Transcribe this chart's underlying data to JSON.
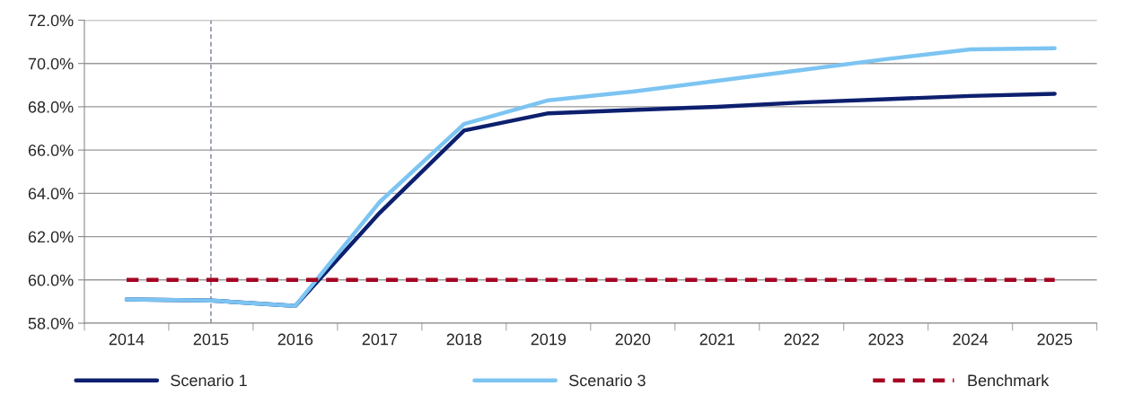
{
  "chart_data": {
    "type": "line",
    "categories": [
      "2014",
      "2015",
      "2016",
      "2017",
      "2018",
      "2019",
      "2020",
      "2021",
      "2022",
      "2023",
      "2024",
      "2025"
    ],
    "series": [
      {
        "name": "Scenario 1",
        "color": "#0d1f6e",
        "values": [
          59.1,
          59.05,
          58.8,
          63.1,
          66.9,
          67.7,
          67.85,
          68.0,
          68.2,
          68.35,
          68.5,
          68.6
        ]
      },
      {
        "name": "Scenario 3",
        "color": "#7cc4f2",
        "values": [
          59.1,
          59.05,
          58.8,
          63.6,
          67.2,
          68.3,
          68.7,
          69.2,
          69.7,
          70.2,
          70.65,
          70.7
        ]
      },
      {
        "name": "Benchmark",
        "color": "#a50021",
        "line_style": "dashed",
        "values": [
          60,
          60,
          60,
          60,
          60,
          60,
          60,
          60,
          60,
          60,
          60,
          60
        ]
      }
    ],
    "ylim": [
      58,
      72
    ],
    "yticks": [
      {
        "value": 58,
        "label": "58.0%"
      },
      {
        "value": 60,
        "label": "60.0%"
      },
      {
        "value": 62,
        "label": "62.0%"
      },
      {
        "value": 64,
        "label": "64.0%"
      },
      {
        "value": 66,
        "label": "66.0%"
      },
      {
        "value": 68,
        "label": "68.0%"
      },
      {
        "value": 70,
        "label": "70.0%"
      },
      {
        "value": 72,
        "label": "72.0%"
      }
    ],
    "ref_lines": [
      {
        "axis": "x",
        "value": "2015",
        "color": "#8a94a8",
        "line_style": "dashed"
      }
    ],
    "grid": "y",
    "legend": "bottom",
    "marker": "none"
  }
}
